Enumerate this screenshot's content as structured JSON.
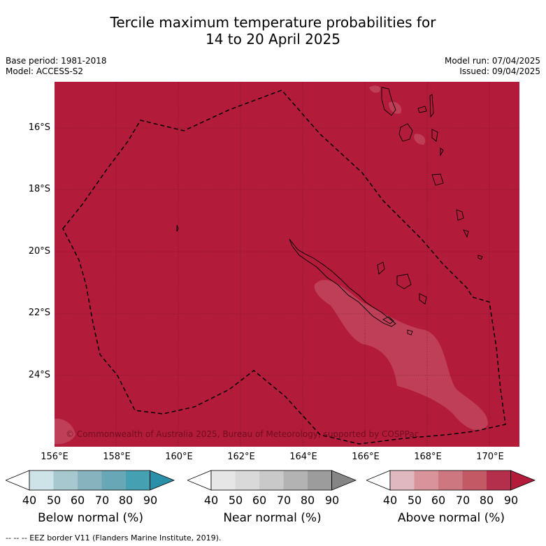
{
  "title_line1": "Tercile maximum temperature probabilities for",
  "title_line2": "14 to 20 April 2025",
  "meta_left": {
    "base_period": "Base period: 1981-2018",
    "model": "Model: ACCESS-S2"
  },
  "meta_right": {
    "model_run": "Model run: 07/04/2025",
    "issued": "Issued: 09/04/2025"
  },
  "map": {
    "lat_labels": [
      "16°S",
      "18°S",
      "20°S",
      "22°S",
      "24°S"
    ],
    "lon_labels": [
      "156°E",
      "158°E",
      "160°E",
      "162°E",
      "164°E",
      "166°E",
      "168°E",
      "170°E"
    ],
    "copyright": "© Commonwealth of Australia 2025, Bureau of Meteorology, supported by COSPPac",
    "dominant_category": "Above normal",
    "dominant_color": "#b31b3a"
  },
  "colorbars": [
    {
      "title": "Below normal (%)",
      "ticks": [
        "40",
        "50",
        "60",
        "70",
        "80",
        "90"
      ],
      "colors": [
        "#ffffff",
        "#cde3e8",
        "#a7c8ce",
        "#86b3bd",
        "#68a7b5",
        "#45a0b2",
        "#2a8fa8"
      ]
    },
    {
      "title": "Near normal (%)",
      "ticks": [
        "40",
        "50",
        "60",
        "70",
        "80",
        "90"
      ],
      "colors": [
        "#ffffff",
        "#e6e6e6",
        "#d9d9d9",
        "#c9c9c9",
        "#b3b3b3",
        "#9c9c9c",
        "#858585"
      ]
    },
    {
      "title": "Above normal (%)",
      "ticks": [
        "40",
        "50",
        "60",
        "70",
        "80",
        "90"
      ],
      "colors": [
        "#ffffff",
        "#e0b8bf",
        "#d8949a",
        "#cd7880",
        "#c45966",
        "#b32f4c",
        "#b31b3a"
      ]
    }
  ],
  "footer": "--  --  -- EEZ border V11 (Flanders Marine Institute, 2019)."
}
